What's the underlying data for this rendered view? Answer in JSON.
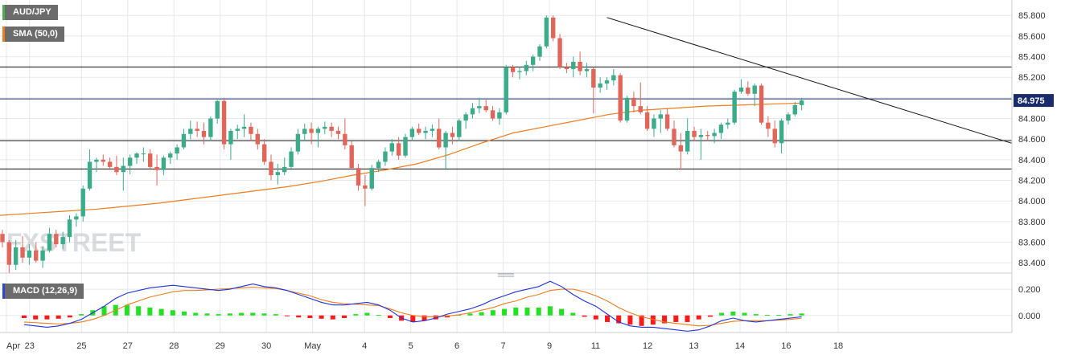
{
  "legend": {
    "symbol": "AUD/JPY",
    "sma": "SMA (50,0)",
    "macd": "MACD (12,26,9)"
  },
  "watermark": "FXSTREET",
  "colors": {
    "up": "#3bab8a",
    "down": "#e0665a",
    "sma": "#f07c1c",
    "macd_line": "#1f33d8",
    "signal_line": "#f07c1c",
    "hist_pos": "#22e022",
    "hist_neg": "#ff1a1a",
    "price_tag": "#1a2b6b",
    "grid": "#e6e8ee"
  },
  "chart_data": [
    {
      "type": "candlestick",
      "title": "AUD/JPY",
      "x_labels": [
        "Apr",
        "23",
        "25",
        "27",
        "28",
        "29",
        "30",
        "May",
        "4",
        "5",
        "6",
        "7",
        "9",
        "11",
        "12",
        "13",
        "14",
        "16",
        "18"
      ],
      "y_ticks": [
        "85.800",
        "85.600",
        "85.400",
        "85.200",
        "85.000",
        "84.800",
        "84.600",
        "84.400",
        "84.200",
        "84.000",
        "83.800",
        "83.600",
        "83.400"
      ],
      "ylim": [
        83.3,
        85.95
      ],
      "current_price": "84.975",
      "levels": [
        85.3,
        84.99,
        84.585,
        84.31
      ],
      "trendline": [
        {
          "i": 90,
          "y": 85.78
        },
        {
          "i": 131,
          "y": 84.95
        }
      ],
      "sma_50": [
        83.86,
        83.88,
        83.9,
        83.92,
        83.95,
        83.98,
        84.02,
        84.06,
        84.1,
        84.14,
        84.19,
        84.25,
        84.3,
        84.36,
        84.45,
        84.56,
        84.66,
        84.72,
        84.78,
        84.84,
        84.88,
        84.9,
        84.92,
        84.93,
        84.94,
        84.95
      ],
      "grid": true,
      "candles": [
        [
          83.68,
          83.72,
          83.55,
          83.6
        ],
        [
          83.6,
          83.62,
          83.3,
          83.38
        ],
        [
          83.38,
          83.62,
          83.33,
          83.55
        ],
        [
          83.55,
          83.66,
          83.4,
          83.45
        ],
        [
          83.45,
          83.58,
          83.38,
          83.52
        ],
        [
          83.52,
          83.6,
          83.4,
          83.42
        ],
        [
          83.42,
          83.56,
          83.35,
          83.52
        ],
        [
          83.52,
          83.74,
          83.5,
          83.68
        ],
        [
          83.68,
          83.72,
          83.55,
          83.58
        ],
        [
          83.58,
          83.7,
          83.53,
          83.65
        ],
        [
          83.65,
          83.86,
          83.6,
          83.82
        ],
        [
          83.82,
          83.88,
          83.75,
          83.85
        ],
        [
          83.85,
          84.15,
          83.8,
          84.12
        ],
        [
          84.12,
          84.5,
          84.1,
          84.38
        ],
        [
          84.38,
          84.42,
          84.28,
          84.4
        ],
        [
          84.4,
          84.45,
          84.34,
          84.38
        ],
        [
          84.38,
          84.42,
          84.3,
          84.33
        ],
        [
          84.33,
          84.44,
          84.25,
          84.28
        ],
        [
          84.28,
          84.42,
          84.1,
          84.34
        ],
        [
          84.34,
          84.45,
          84.26,
          84.42
        ],
        [
          84.42,
          84.47,
          84.36,
          84.46
        ],
        [
          84.46,
          84.52,
          84.38,
          84.46
        ],
        [
          84.46,
          84.5,
          84.3,
          84.33
        ],
        [
          84.33,
          84.45,
          84.15,
          84.3
        ],
        [
          84.3,
          84.44,
          84.25,
          84.42
        ],
        [
          84.42,
          84.48,
          84.36,
          84.46
        ],
        [
          84.46,
          84.55,
          84.4,
          84.52
        ],
        [
          84.52,
          84.7,
          84.5,
          84.65
        ],
        [
          84.65,
          84.78,
          84.6,
          84.7
        ],
        [
          84.7,
          84.77,
          84.62,
          84.68
        ],
        [
          84.68,
          84.76,
          84.55,
          84.62
        ],
        [
          84.62,
          84.82,
          84.58,
          84.8
        ],
        [
          84.8,
          84.98,
          84.75,
          84.97
        ],
        [
          84.97,
          85.0,
          84.5,
          84.55
        ],
        [
          84.55,
          84.7,
          84.4,
          84.68
        ],
        [
          84.68,
          84.74,
          84.6,
          84.7
        ],
        [
          84.7,
          84.84,
          84.62,
          84.72
        ],
        [
          84.72,
          84.76,
          84.58,
          84.65
        ],
        [
          84.65,
          84.7,
          84.5,
          84.55
        ],
        [
          84.55,
          84.6,
          84.35,
          84.38
        ],
        [
          84.38,
          84.45,
          84.2,
          84.25
        ],
        [
          84.25,
          84.36,
          84.16,
          84.28
        ],
        [
          84.28,
          84.42,
          84.25,
          84.33
        ],
        [
          84.33,
          84.52,
          84.3,
          84.48
        ],
        [
          84.48,
          84.7,
          84.45,
          84.65
        ],
        [
          84.65,
          84.75,
          84.58,
          84.7
        ],
        [
          84.7,
          84.76,
          84.55,
          84.66
        ],
        [
          84.66,
          84.72,
          84.52,
          84.7
        ],
        [
          84.7,
          84.77,
          84.65,
          84.72
        ],
        [
          84.72,
          84.76,
          84.62,
          84.68
        ],
        [
          84.68,
          84.72,
          84.6,
          84.65
        ],
        [
          84.65,
          84.8,
          84.5,
          84.54
        ],
        [
          84.54,
          84.58,
          84.3,
          84.32
        ],
        [
          84.32,
          84.36,
          84.1,
          84.15
        ],
        [
          84.15,
          84.25,
          83.95,
          84.12
        ],
        [
          84.12,
          84.35,
          84.1,
          84.32
        ],
        [
          84.32,
          84.4,
          84.28,
          84.38
        ],
        [
          84.38,
          84.52,
          84.34,
          84.48
        ],
        [
          84.48,
          84.6,
          84.44,
          84.56
        ],
        [
          84.56,
          84.62,
          84.4,
          84.44
        ],
        [
          84.44,
          84.65,
          84.42,
          84.62
        ],
        [
          84.62,
          84.72,
          84.58,
          84.7
        ],
        [
          84.7,
          84.75,
          84.64,
          84.66
        ],
        [
          84.66,
          84.72,
          84.6,
          84.68
        ],
        [
          84.68,
          84.74,
          84.62,
          84.7
        ],
        [
          84.7,
          84.8,
          84.5,
          84.52
        ],
        [
          84.52,
          84.68,
          84.3,
          84.66
        ],
        [
          84.66,
          84.72,
          84.55,
          84.62
        ],
        [
          84.62,
          84.8,
          84.58,
          84.78
        ],
        [
          84.78,
          84.86,
          84.7,
          84.84
        ],
        [
          84.84,
          84.95,
          84.8,
          84.9
        ],
        [
          84.9,
          85.0,
          84.85,
          84.92
        ],
        [
          84.92,
          84.98,
          84.86,
          84.88
        ],
        [
          84.88,
          84.92,
          84.78,
          84.8
        ],
        [
          84.8,
          84.9,
          84.74,
          84.86
        ],
        [
          84.86,
          85.32,
          84.84,
          85.3
        ],
        [
          85.3,
          85.32,
          85.2,
          85.25
        ],
        [
          85.25,
          85.3,
          85.18,
          85.26
        ],
        [
          85.26,
          85.36,
          85.22,
          85.32
        ],
        [
          85.32,
          85.42,
          85.26,
          85.4
        ],
        [
          85.4,
          85.52,
          85.36,
          85.5
        ],
        [
          85.5,
          85.8,
          85.48,
          85.78
        ],
        [
          85.78,
          85.8,
          85.55,
          85.58
        ],
        [
          85.58,
          85.62,
          85.28,
          85.3
        ],
        [
          85.3,
          85.34,
          85.24,
          85.28
        ],
        [
          85.28,
          85.4,
          85.2,
          85.35
        ],
        [
          85.35,
          85.45,
          85.22,
          85.26
        ],
        [
          85.26,
          85.34,
          85.2,
          85.28
        ],
        [
          85.28,
          85.3,
          84.85,
          85.1
        ],
        [
          85.1,
          85.2,
          85.05,
          85.14
        ],
        [
          85.14,
          85.2,
          85.08,
          85.17
        ],
        [
          85.17,
          85.28,
          85.12,
          85.22
        ],
        [
          85.22,
          85.24,
          84.76,
          84.78
        ],
        [
          84.78,
          85.02,
          84.76,
          85.0
        ],
        [
          85.0,
          85.06,
          84.86,
          84.92
        ],
        [
          84.92,
          85.15,
          84.84,
          84.86
        ],
        [
          84.86,
          84.92,
          84.68,
          84.7
        ],
        [
          84.7,
          84.84,
          84.62,
          84.8
        ],
        [
          84.8,
          84.88,
          84.66,
          84.84
        ],
        [
          84.84,
          84.9,
          84.68,
          84.7
        ],
        [
          84.7,
          84.78,
          84.52,
          84.54
        ],
        [
          84.54,
          84.66,
          84.3,
          84.48
        ],
        [
          84.48,
          84.8,
          84.45,
          84.68
        ],
        [
          84.68,
          84.72,
          84.58,
          84.62
        ],
        [
          84.62,
          84.7,
          84.4,
          84.64
        ],
        [
          84.64,
          84.68,
          84.58,
          84.63
        ],
        [
          84.63,
          84.7,
          84.56,
          84.66
        ],
        [
          84.66,
          84.76,
          84.6,
          84.74
        ],
        [
          84.74,
          84.8,
          84.7,
          84.76
        ],
        [
          84.76,
          85.08,
          84.74,
          85.06
        ],
        [
          85.06,
          85.18,
          85.04,
          85.1
        ],
        [
          85.1,
          85.16,
          85.02,
          85.04
        ],
        [
          85.04,
          85.14,
          84.92,
          85.12
        ],
        [
          85.12,
          85.14,
          84.74,
          84.76
        ],
        [
          84.76,
          84.82,
          84.62,
          84.7
        ],
        [
          84.7,
          84.78,
          84.52,
          84.56
        ],
        [
          84.56,
          84.8,
          84.46,
          84.78
        ],
        [
          84.78,
          84.86,
          84.74,
          84.84
        ],
        [
          84.84,
          84.96,
          84.82,
          84.93
        ],
        [
          84.93,
          85.0,
          84.88,
          84.975
        ]
      ],
      "macd": {
        "labels": [
          "0.200",
          "0.000"
        ],
        "ylim": [
          -0.13,
          0.28
        ],
        "macd": [
          -0.07,
          -0.08,
          -0.09,
          -0.08,
          -0.06,
          -0.03,
          0.02,
          0.07,
          0.13,
          0.17,
          0.19,
          0.21,
          0.22,
          0.23,
          0.22,
          0.21,
          0.2,
          0.19,
          0.2,
          0.22,
          0.24,
          0.22,
          0.21,
          0.19,
          0.16,
          0.13,
          0.1,
          0.08,
          0.08,
          0.09,
          0.1,
          0.08,
          0.04,
          -0.02,
          -0.05,
          -0.04,
          -0.02,
          0.01,
          0.03,
          0.05,
          0.08,
          0.12,
          0.15,
          0.18,
          0.2,
          0.22,
          0.26,
          0.22,
          0.16,
          0.11,
          0.07,
          0.01,
          -0.05,
          -0.08,
          -0.09,
          -0.09,
          -0.1,
          -0.11,
          -0.12,
          -0.11,
          -0.08,
          -0.04,
          -0.02,
          -0.04,
          -0.05,
          -0.04,
          -0.03,
          -0.02,
          -0.01
        ],
        "signal": [
          -0.05,
          -0.055,
          -0.06,
          -0.065,
          -0.06,
          -0.05,
          -0.03,
          0.0,
          0.04,
          0.08,
          0.11,
          0.14,
          0.16,
          0.18,
          0.19,
          0.19,
          0.195,
          0.2,
          0.205,
          0.21,
          0.215,
          0.21,
          0.205,
          0.19,
          0.17,
          0.15,
          0.12,
          0.1,
          0.09,
          0.085,
          0.08,
          0.075,
          0.05,
          0.02,
          0.0,
          -0.01,
          -0.01,
          -0.005,
          0.005,
          0.02,
          0.04,
          0.06,
          0.09,
          0.11,
          0.14,
          0.16,
          0.19,
          0.2,
          0.2,
          0.18,
          0.15,
          0.11,
          0.06,
          0.02,
          -0.01,
          -0.03,
          -0.05,
          -0.06,
          -0.07,
          -0.08,
          -0.075,
          -0.06,
          -0.045,
          -0.04,
          -0.04,
          -0.04,
          -0.035,
          -0.03,
          -0.02
        ],
        "histogram": [
          -0.02,
          -0.03,
          -0.03,
          -0.025,
          -0.015,
          0.01,
          0.04,
          0.07,
          0.08,
          0.08,
          0.07,
          0.06,
          0.05,
          0.04,
          0.03,
          0.02,
          0.015,
          0.01,
          0.015,
          0.02,
          0.02,
          0.015,
          0.01,
          -0.005,
          -0.015,
          -0.02,
          -0.025,
          -0.03,
          -0.02,
          0.01,
          0.02,
          0.005,
          -0.02,
          -0.04,
          -0.05,
          -0.04,
          -0.03,
          -0.015,
          0.005,
          0.015,
          0.025,
          0.04,
          0.05,
          0.06,
          0.06,
          0.06,
          0.07,
          0.05,
          0.02,
          -0.01,
          -0.03,
          -0.05,
          -0.06,
          -0.07,
          -0.08,
          -0.07,
          -0.06,
          -0.05,
          -0.05,
          -0.03,
          -0.01,
          0.02,
          0.03,
          0.02,
          0.01,
          0.005,
          0.005,
          0.01,
          0.015
        ]
      }
    }
  ]
}
